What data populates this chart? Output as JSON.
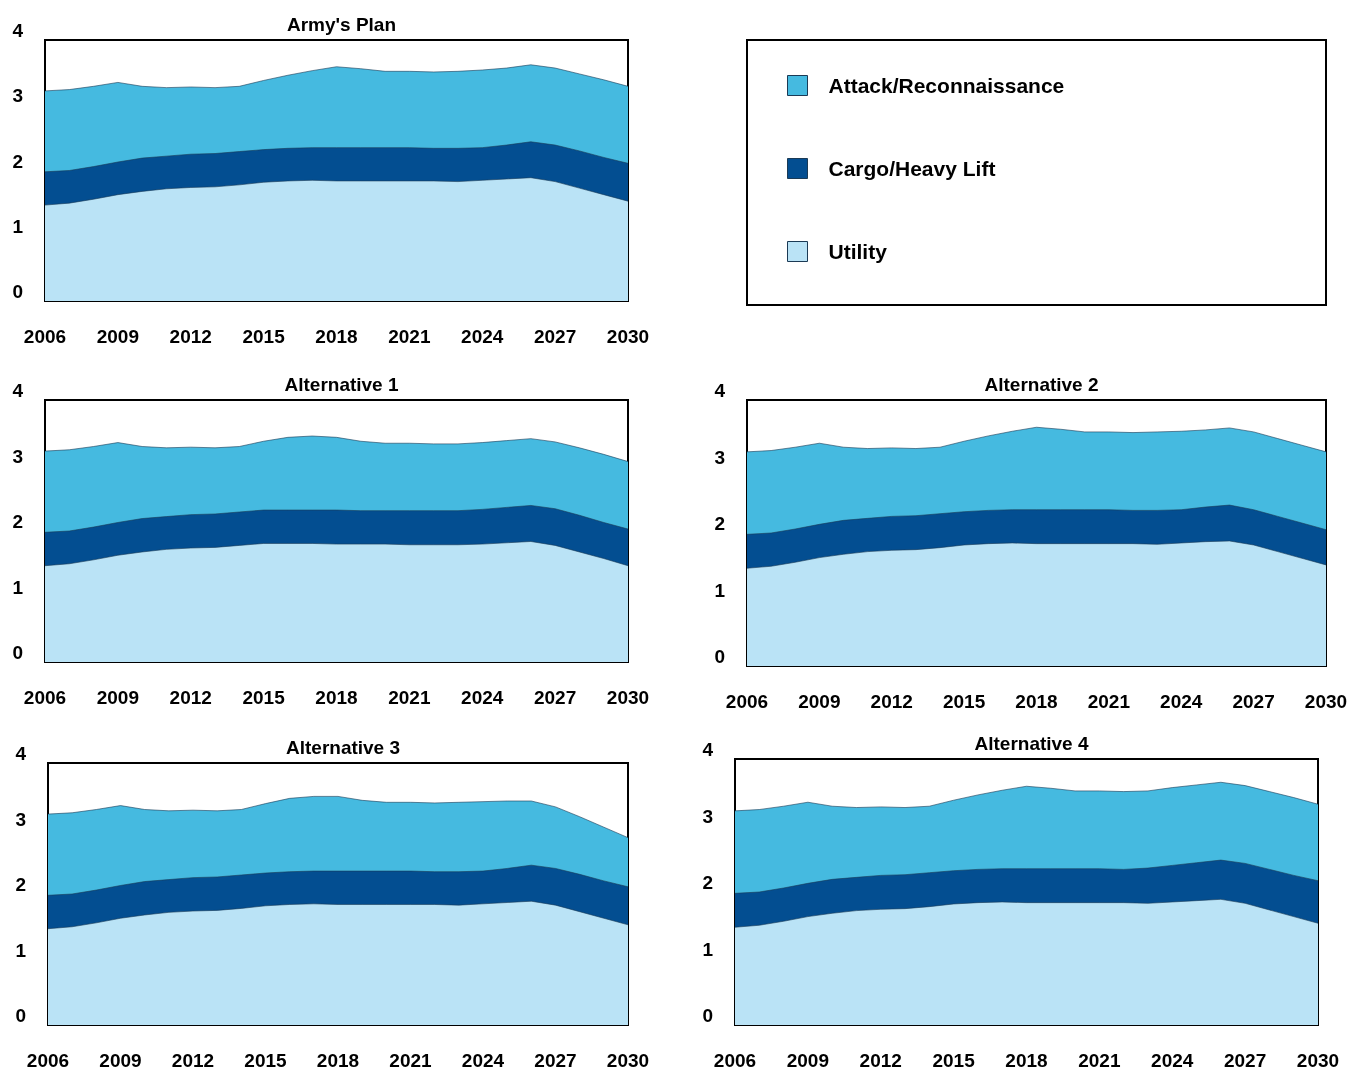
{
  "chart_data": [
    {
      "type": "area",
      "title": "Army's Plan",
      "stacked": true,
      "legend": "right",
      "grid": false,
      "x": [
        2006,
        2007,
        2008,
        2009,
        2010,
        2011,
        2012,
        2013,
        2014,
        2015,
        2016,
        2017,
        2018,
        2019,
        2020,
        2021,
        2022,
        2023,
        2024,
        2025,
        2026,
        2027,
        2028,
        2029,
        2030
      ],
      "xlim": [
        2006,
        2030
      ],
      "xticks": [
        2006,
        2009,
        2012,
        2015,
        2018,
        2021,
        2024,
        2027,
        2030
      ],
      "ylim": [
        0,
        4
      ],
      "yticks": [
        0,
        1,
        2,
        3,
        4
      ],
      "series": [
        {
          "name": "Utility",
          "color": "#bae3f6",
          "values": [
            1.47,
            1.5,
            1.56,
            1.63,
            1.68,
            1.72,
            1.74,
            1.75,
            1.78,
            1.82,
            1.84,
            1.85,
            1.84,
            1.84,
            1.84,
            1.84,
            1.84,
            1.83,
            1.85,
            1.87,
            1.89,
            1.83,
            1.73,
            1.63,
            1.53
          ]
        },
        {
          "name": "Cargo/Heavy Lift",
          "color": "#034e91",
          "values": [
            0.51,
            0.5,
            0.5,
            0.5,
            0.51,
            0.5,
            0.51,
            0.51,
            0.51,
            0.5,
            0.5,
            0.5,
            0.51,
            0.51,
            0.51,
            0.51,
            0.5,
            0.51,
            0.5,
            0.52,
            0.55,
            0.56,
            0.57,
            0.57,
            0.58
          ]
        },
        {
          "name": "Attack/Reconnaissance",
          "color": "#45bae0",
          "values": [
            1.24,
            1.24,
            1.23,
            1.22,
            1.1,
            1.05,
            1.03,
            1.01,
            1.0,
            1.06,
            1.12,
            1.18,
            1.24,
            1.21,
            1.17,
            1.17,
            1.17,
            1.18,
            1.19,
            1.18,
            1.18,
            1.18,
            1.18,
            1.19,
            1.18
          ]
        }
      ]
    },
    {
      "type": "area",
      "title": "Alternative 1",
      "stacked": true,
      "grid": false,
      "x": [
        2006,
        2007,
        2008,
        2009,
        2010,
        2011,
        2012,
        2013,
        2014,
        2015,
        2016,
        2017,
        2018,
        2019,
        2020,
        2021,
        2022,
        2023,
        2024,
        2025,
        2026,
        2027,
        2028,
        2029,
        2030
      ],
      "xlim": [
        2006,
        2030
      ],
      "xticks": [
        2006,
        2009,
        2012,
        2015,
        2018,
        2021,
        2024,
        2027,
        2030
      ],
      "ylim": [
        0,
        4
      ],
      "yticks": [
        0,
        1,
        2,
        3,
        4
      ],
      "series": [
        {
          "color": "#bae3f6",
          "values": [
            1.47,
            1.5,
            1.56,
            1.63,
            1.68,
            1.72,
            1.74,
            1.75,
            1.78,
            1.81,
            1.81,
            1.81,
            1.8,
            1.8,
            1.8,
            1.79,
            1.79,
            1.79,
            1.8,
            1.82,
            1.84,
            1.78,
            1.68,
            1.58,
            1.47
          ]
        },
        {
          "color": "#034e91",
          "values": [
            0.51,
            0.5,
            0.5,
            0.5,
            0.51,
            0.5,
            0.51,
            0.51,
            0.51,
            0.51,
            0.51,
            0.51,
            0.52,
            0.51,
            0.51,
            0.52,
            0.52,
            0.52,
            0.53,
            0.54,
            0.55,
            0.56,
            0.56,
            0.55,
            0.56
          ]
        },
        {
          "color": "#45bae0",
          "values": [
            1.24,
            1.24,
            1.23,
            1.22,
            1.1,
            1.05,
            1.03,
            1.01,
            1.0,
            1.05,
            1.11,
            1.13,
            1.11,
            1.06,
            1.03,
            1.03,
            1.02,
            1.02,
            1.02,
            1.02,
            1.02,
            1.02,
            1.03,
            1.04,
            1.03
          ]
        }
      ]
    },
    {
      "type": "area",
      "title": "Alternative 2",
      "stacked": true,
      "grid": false,
      "x": [
        2006,
        2007,
        2008,
        2009,
        2010,
        2011,
        2012,
        2013,
        2014,
        2015,
        2016,
        2017,
        2018,
        2019,
        2020,
        2021,
        2022,
        2023,
        2024,
        2025,
        2026,
        2027,
        2028,
        2029,
        2030
      ],
      "xlim": [
        2006,
        2030
      ],
      "xticks": [
        2006,
        2009,
        2012,
        2015,
        2018,
        2021,
        2024,
        2027,
        2030
      ],
      "ylim": [
        0,
        4
      ],
      "yticks": [
        0,
        1,
        2,
        3,
        4
      ],
      "series": [
        {
          "color": "#bae3f6",
          "values": [
            1.47,
            1.5,
            1.56,
            1.63,
            1.68,
            1.72,
            1.74,
            1.75,
            1.78,
            1.82,
            1.84,
            1.85,
            1.84,
            1.84,
            1.84,
            1.84,
            1.84,
            1.83,
            1.85,
            1.87,
            1.88,
            1.82,
            1.72,
            1.62,
            1.52
          ]
        },
        {
          "color": "#034e91",
          "values": [
            0.51,
            0.5,
            0.5,
            0.5,
            0.51,
            0.5,
            0.51,
            0.51,
            0.51,
            0.5,
            0.5,
            0.5,
            0.51,
            0.51,
            0.51,
            0.51,
            0.5,
            0.51,
            0.5,
            0.52,
            0.54,
            0.53,
            0.53,
            0.53,
            0.53
          ]
        },
        {
          "color": "#45bae0",
          "values": [
            1.24,
            1.24,
            1.23,
            1.22,
            1.1,
            1.05,
            1.03,
            1.01,
            1.0,
            1.06,
            1.12,
            1.18,
            1.24,
            1.21,
            1.17,
            1.17,
            1.17,
            1.18,
            1.18,
            1.16,
            1.16,
            1.17,
            1.17,
            1.17,
            1.17
          ]
        }
      ]
    },
    {
      "type": "area",
      "title": "Alternative 3",
      "stacked": true,
      "grid": false,
      "x": [
        2006,
        2007,
        2008,
        2009,
        2010,
        2011,
        2012,
        2013,
        2014,
        2015,
        2016,
        2017,
        2018,
        2019,
        2020,
        2021,
        2022,
        2023,
        2024,
        2025,
        2026,
        2027,
        2028,
        2029,
        2030
      ],
      "xlim": [
        2006,
        2030
      ],
      "xticks": [
        2006,
        2009,
        2012,
        2015,
        2018,
        2021,
        2024,
        2027,
        2030
      ],
      "ylim": [
        0,
        4
      ],
      "yticks": [
        0,
        1,
        2,
        3,
        4
      ],
      "series": [
        {
          "color": "#bae3f6",
          "values": [
            1.47,
            1.5,
            1.56,
            1.63,
            1.68,
            1.72,
            1.74,
            1.75,
            1.78,
            1.82,
            1.84,
            1.85,
            1.84,
            1.84,
            1.84,
            1.84,
            1.84,
            1.83,
            1.85,
            1.87,
            1.89,
            1.83,
            1.73,
            1.63,
            1.53
          ]
        },
        {
          "color": "#034e91",
          "values": [
            0.51,
            0.5,
            0.5,
            0.5,
            0.51,
            0.5,
            0.51,
            0.51,
            0.51,
            0.5,
            0.5,
            0.5,
            0.51,
            0.51,
            0.51,
            0.51,
            0.5,
            0.51,
            0.5,
            0.52,
            0.55,
            0.56,
            0.57,
            0.57,
            0.58
          ]
        },
        {
          "color": "#45bae0",
          "values": [
            1.24,
            1.24,
            1.23,
            1.22,
            1.1,
            1.05,
            1.03,
            1.01,
            1.0,
            1.06,
            1.12,
            1.14,
            1.14,
            1.08,
            1.05,
            1.05,
            1.05,
            1.06,
            1.06,
            1.03,
            0.98,
            0.94,
            0.88,
            0.82,
            0.75
          ]
        }
      ]
    },
    {
      "type": "area",
      "title": "Alternative 4",
      "stacked": true,
      "grid": false,
      "x": [
        2006,
        2007,
        2008,
        2009,
        2010,
        2011,
        2012,
        2013,
        2014,
        2015,
        2016,
        2017,
        2018,
        2019,
        2020,
        2021,
        2022,
        2023,
        2024,
        2025,
        2026,
        2027,
        2028,
        2029,
        2030
      ],
      "xlim": [
        2006,
        2030
      ],
      "xticks": [
        2006,
        2009,
        2012,
        2015,
        2018,
        2021,
        2024,
        2027,
        2030
      ],
      "ylim": [
        0,
        4
      ],
      "yticks": [
        0,
        1,
        2,
        3,
        4
      ],
      "series": [
        {
          "color": "#bae3f6",
          "values": [
            1.47,
            1.5,
            1.56,
            1.63,
            1.68,
            1.72,
            1.74,
            1.75,
            1.78,
            1.82,
            1.84,
            1.85,
            1.84,
            1.84,
            1.84,
            1.84,
            1.84,
            1.83,
            1.85,
            1.87,
            1.89,
            1.83,
            1.73,
            1.63,
            1.53
          ]
        },
        {
          "color": "#034e91",
          "values": [
            0.51,
            0.5,
            0.5,
            0.5,
            0.51,
            0.5,
            0.51,
            0.51,
            0.51,
            0.5,
            0.5,
            0.5,
            0.51,
            0.51,
            0.51,
            0.51,
            0.5,
            0.53,
            0.55,
            0.57,
            0.59,
            0.6,
            0.61,
            0.62,
            0.64
          ]
        },
        {
          "color": "#45bae0",
          "values": [
            1.24,
            1.24,
            1.23,
            1.22,
            1.1,
            1.05,
            1.03,
            1.01,
            1.0,
            1.06,
            1.12,
            1.18,
            1.24,
            1.21,
            1.17,
            1.17,
            1.17,
            1.16,
            1.17,
            1.17,
            1.17,
            1.17,
            1.17,
            1.17,
            1.15
          ]
        }
      ]
    }
  ]
}
